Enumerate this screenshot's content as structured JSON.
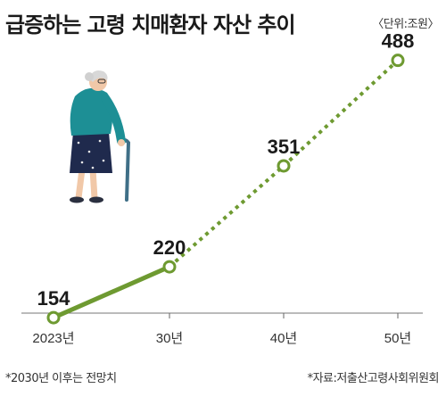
{
  "header": {
    "title": "급증하는 고령 치매환자 자산 추이",
    "unit": "〈단위:조원〉"
  },
  "footer": {
    "note": "*2030년 이후는 전망치",
    "source": "*자료:저출산고령사회위원회"
  },
  "colors": {
    "line": "#6e9a31",
    "marker_fill": "#ffffff",
    "axis": "#666666"
  },
  "chart_data": {
    "type": "line",
    "categories": [
      "2023년",
      "30년",
      "40년",
      "50년"
    ],
    "series": [
      {
        "values": [
          154,
          220,
          351,
          488
        ],
        "actual_until_index": 1
      }
    ],
    "ylim": [
      80,
      520
    ],
    "grid": false
  }
}
